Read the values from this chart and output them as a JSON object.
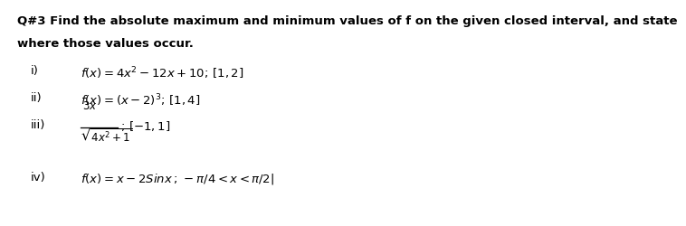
{
  "bg_color": "#ffffff",
  "text_color": "#000000",
  "title_line1": "Q#3 Find the absolute maximum and minimum values of f on the given closed interval, and state",
  "title_line2": "where those values occur.",
  "items": [
    {
      "label": "i)",
      "text": "$f(x) = 4x^2 - 12x + 10;\\,[1,2]$"
    },
    {
      "label": "ii)",
      "text": "$f(x) = (x-2)^3;\\,[1,4]$"
    },
    {
      "label": "iii)",
      "frac_num": "$3x$",
      "frac_den": "$\\sqrt{4x^2+1}$",
      "frac_suffix": "$;\\,[-1,1]$"
    },
    {
      "label": "iv)",
      "text": "$f(x) = x - 2Sinx\\,;\\,-\\pi/4 < x < \\pi/2$"
    }
  ]
}
